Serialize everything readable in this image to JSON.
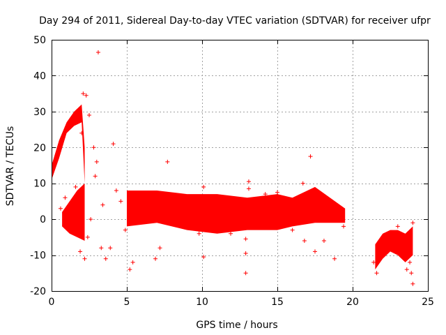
{
  "chart_data": {
    "type": "scatter",
    "title": "Day 294 of 2011, Sidereal Day-to-day VTEC variation (SDTVAR) for receiver ufpr",
    "xlabel": "GPS time / hours",
    "ylabel": "SDTVAR / TECUs",
    "xlim": [
      0,
      25
    ],
    "ylim": [
      -20,
      50
    ],
    "x_ticks": [
      0,
      5,
      10,
      15,
      20,
      25
    ],
    "x_tick_labels": [
      "0",
      "5",
      "10",
      "15",
      "20",
      "25"
    ],
    "y_ticks": [
      -20,
      -10,
      0,
      10,
      20,
      30,
      40,
      50
    ],
    "y_tick_labels": [
      "-20",
      "-10",
      "0",
      "10",
      "20",
      "30",
      "40",
      "50"
    ],
    "grid": true,
    "marker": "+",
    "color": "#ff0000",
    "bands": [
      {
        "name": "main-band",
        "x": [
          5.0,
          7.0,
          9.0,
          11.0,
          13.0,
          15.0,
          16.0,
          17.5,
          19.5
        ],
        "upper": [
          8,
          8,
          7,
          7,
          6,
          7,
          6,
          9,
          3
        ],
        "lower": [
          -2,
          -1,
          -3,
          -4,
          -3,
          -3,
          -2,
          -1,
          -1
        ]
      },
      {
        "name": "early-upper-band",
        "x": [
          0.0,
          0.5,
          1.0,
          1.5,
          2.0,
          2.2
        ],
        "upper": [
          15,
          22,
          27,
          30,
          32,
          20
        ],
        "lower": [
          11,
          17,
          24,
          26,
          27,
          10
        ]
      },
      {
        "name": "early-lower-band",
        "x": [
          0.7,
          1.2,
          1.7,
          2.2
        ],
        "upper": [
          2,
          5,
          8,
          10
        ],
        "lower": [
          -2,
          -4,
          -5,
          -6
        ]
      },
      {
        "name": "late-band",
        "x": [
          21.5,
          22.0,
          22.5,
          23.0,
          23.5,
          24.0
        ],
        "upper": [
          -7,
          -4,
          -3,
          -3,
          -4,
          -2
        ],
        "lower": [
          -14,
          -11,
          -9,
          -10,
          -12,
          -10
        ]
      }
    ],
    "points": [
      {
        "x": 3.1,
        "y": 46.5
      },
      {
        "x": 4.1,
        "y": 21
      },
      {
        "x": 7.7,
        "y": 16
      },
      {
        "x": 10.1,
        "y": -10.5
      },
      {
        "x": 12.9,
        "y": -15
      },
      {
        "x": 12.9,
        "y": -9.5
      },
      {
        "x": 12.9,
        "y": -5.5
      },
      {
        "x": 13.1,
        "y": 10.5
      },
      {
        "x": 13.1,
        "y": 8.5
      },
      {
        "x": 15.0,
        "y": 7.5
      },
      {
        "x": 17.2,
        "y": 17.5
      },
      {
        "x": 16.7,
        "y": 10
      },
      {
        "x": 24.0,
        "y": -18
      },
      {
        "x": 23.9,
        "y": -15
      },
      {
        "x": 24.0,
        "y": -1
      },
      {
        "x": 2.1,
        "y": 35
      },
      {
        "x": 2.3,
        "y": 34.5
      },
      {
        "x": 2.5,
        "y": 29
      },
      {
        "x": 2.8,
        "y": 20
      },
      {
        "x": 3.0,
        "y": 16
      },
      {
        "x": 2.0,
        "y": 24
      },
      {
        "x": 2.2,
        "y": -11
      },
      {
        "x": 1.9,
        "y": -9
      },
      {
        "x": 2.4,
        "y": -5
      },
      {
        "x": 3.3,
        "y": -8
      },
      {
        "x": 3.6,
        "y": -11
      },
      {
        "x": 3.9,
        "y": -8
      },
      {
        "x": 4.6,
        "y": 5
      },
      {
        "x": 5.2,
        "y": -14
      },
      {
        "x": 5.4,
        "y": -12
      },
      {
        "x": 6.9,
        "y": -11
      },
      {
        "x": 7.2,
        "y": -8
      },
      {
        "x": 9.8,
        "y": -4
      },
      {
        "x": 10.1,
        "y": 9
      },
      {
        "x": 11.9,
        "y": -4
      },
      {
        "x": 14.5,
        "y": -2
      },
      {
        "x": 16.0,
        "y": -3
      },
      {
        "x": 16.8,
        "y": -6
      },
      {
        "x": 17.5,
        "y": -9
      },
      {
        "x": 18.1,
        "y": -6
      },
      {
        "x": 18.8,
        "y": -11
      },
      {
        "x": 19.4,
        "y": -2
      },
      {
        "x": 21.4,
        "y": -12
      },
      {
        "x": 21.6,
        "y": -15
      },
      {
        "x": 22.2,
        "y": -6
      },
      {
        "x": 23.0,
        "y": -2
      },
      {
        "x": 23.6,
        "y": -14
      },
      {
        "x": 23.8,
        "y": -12
      },
      {
        "x": 0.6,
        "y": 3
      },
      {
        "x": 0.9,
        "y": 6
      },
      {
        "x": 1.4,
        "y": 1
      },
      {
        "x": 1.6,
        "y": 9
      },
      {
        "x": 2.6,
        "y": 0
      },
      {
        "x": 2.9,
        "y": 12
      },
      {
        "x": 3.4,
        "y": 4
      },
      {
        "x": 4.3,
        "y": 8
      },
      {
        "x": 4.9,
        "y": -3
      },
      {
        "x": 6.1,
        "y": 4
      },
      {
        "x": 8.3,
        "y": 6
      },
      {
        "x": 11.2,
        "y": 2
      },
      {
        "x": 14.2,
        "y": 7
      },
      {
        "x": 15.6,
        "y": 5
      },
      {
        "x": 18.6,
        "y": 1
      },
      {
        "x": 19.2,
        "y": 3
      },
      {
        "x": 22.8,
        "y": -8
      },
      {
        "x": 23.3,
        "y": -5
      }
    ]
  }
}
